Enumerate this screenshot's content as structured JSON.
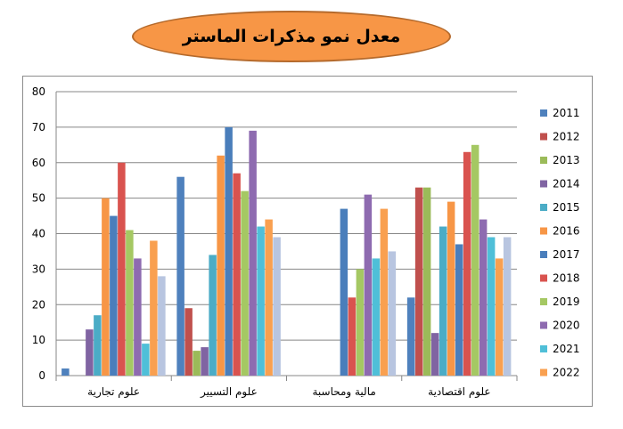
{
  "chart_data": {
    "type": "bar",
    "title": "معدل نمو مذكرات الماستر",
    "categories": [
      "علوم تجارية",
      "علوم التسيير",
      "مالية ومحاسبة",
      "علوم اقتصادية"
    ],
    "ylim": [
      0,
      80
    ],
    "yticks": [
      0,
      10,
      20,
      30,
      40,
      50,
      60,
      70,
      80
    ],
    "grid": true,
    "legend_position": "right",
    "series": [
      {
        "name": "2011",
        "color": "#4f81bd",
        "values": [
          2,
          56,
          0,
          22
        ]
      },
      {
        "name": "2012",
        "color": "#c0504d",
        "values": [
          0,
          19,
          0,
          53
        ]
      },
      {
        "name": "2013",
        "color": "#9bbb59",
        "values": [
          0,
          7,
          0,
          53
        ]
      },
      {
        "name": "2014",
        "color": "#8064a2",
        "values": [
          13,
          8,
          0,
          12
        ]
      },
      {
        "name": "2015",
        "color": "#4bacc6",
        "values": [
          17,
          34,
          0,
          42
        ]
      },
      {
        "name": "2016",
        "color": "#f79646",
        "values": [
          50,
          62,
          0,
          49
        ]
      },
      {
        "name": "2017",
        "color": "#4a7ebb",
        "values": [
          45,
          70,
          47,
          37
        ]
      },
      {
        "name": "2018",
        "color": "#d9534f",
        "values": [
          60,
          57,
          22,
          63
        ]
      },
      {
        "name": "2019",
        "color": "#a5c863",
        "values": [
          41,
          52,
          30,
          65
        ]
      },
      {
        "name": "2020",
        "color": "#8e6bb0",
        "values": [
          33,
          69,
          51,
          44
        ]
      },
      {
        "name": "2021",
        "color": "#4fbfd8",
        "values": [
          9,
          42,
          33,
          39
        ]
      },
      {
        "name": "2022",
        "color": "#f9a050",
        "values": [
          38,
          44,
          47,
          33
        ]
      },
      {
        "name": "",
        "color": "#b8c5e0",
        "values": [
          28,
          39,
          35,
          39
        ]
      }
    ]
  }
}
